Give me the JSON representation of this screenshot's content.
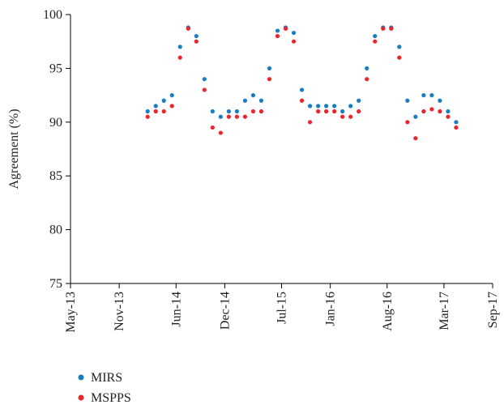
{
  "chart_data": {
    "type": "scatter",
    "y_label": "Agreement (%)",
    "x": [
      "2014-02",
      "2014-03",
      "2014-04",
      "2014-05",
      "2014-06",
      "2014-07",
      "2014-08",
      "2014-09",
      "2014-10",
      "2014-11",
      "2014-12",
      "2015-01",
      "2015-02",
      "2015-03",
      "2015-04",
      "2015-05",
      "2015-06",
      "2015-07",
      "2015-08",
      "2015-09",
      "2015-10",
      "2015-11",
      "2015-12",
      "2016-01",
      "2016-02",
      "2016-03",
      "2016-04",
      "2016-05",
      "2016-06",
      "2016-07",
      "2016-08",
      "2016-09",
      "2016-10",
      "2016-11",
      "2016-12",
      "2017-01",
      "2017-02",
      "2017-03",
      "2017-04"
    ],
    "series": [
      {
        "name": "MIRS",
        "color": "#1a7dc0",
        "values": [
          91,
          91.5,
          92,
          92.5,
          97,
          98.8,
          98,
          94,
          91,
          90.5,
          91,
          91,
          92,
          92.5,
          92,
          95,
          98.5,
          98.8,
          98.3,
          93,
          91.5,
          91.5,
          91.5,
          91.5,
          91,
          91.5,
          92,
          95,
          98,
          98.8,
          98.8,
          97,
          92,
          90.5,
          92.5,
          92.5,
          92,
          91,
          90
        ]
      },
      {
        "name": "MSPPS",
        "color": "#e8262c",
        "values": [
          90.5,
          91,
          91,
          91.5,
          96,
          98.7,
          97.5,
          93,
          89.5,
          89,
          90.5,
          90.5,
          90.5,
          91,
          91,
          94,
          98,
          98.7,
          97.5,
          92,
          90,
          91,
          91,
          91,
          90.5,
          90.5,
          91,
          94,
          97.5,
          98.7,
          98.7,
          96,
          90,
          88.5,
          91,
          91.2,
          91,
          90.5,
          89.5
        ]
      }
    ],
    "xlim": [
      "2013-05",
      "2017-09"
    ],
    "xticks": [
      {
        "value": "2013-05",
        "label": "May-13"
      },
      {
        "value": "2013-11",
        "label": "Nov-13"
      },
      {
        "value": "2014-06",
        "label": "Jun-14"
      },
      {
        "value": "2014-12",
        "label": "Dec-14"
      },
      {
        "value": "2015-07",
        "label": "Jul-15"
      },
      {
        "value": "2016-01",
        "label": "Jan-16"
      },
      {
        "value": "2016-08",
        "label": "Aug-16"
      },
      {
        "value": "2017-03",
        "label": "Mar-17"
      },
      {
        "value": "2017-09",
        "label": "Sep-17"
      }
    ],
    "ylim": [
      75,
      100
    ],
    "yticks": [
      75,
      80,
      85,
      90,
      95,
      100
    ],
    "grid": false
  }
}
